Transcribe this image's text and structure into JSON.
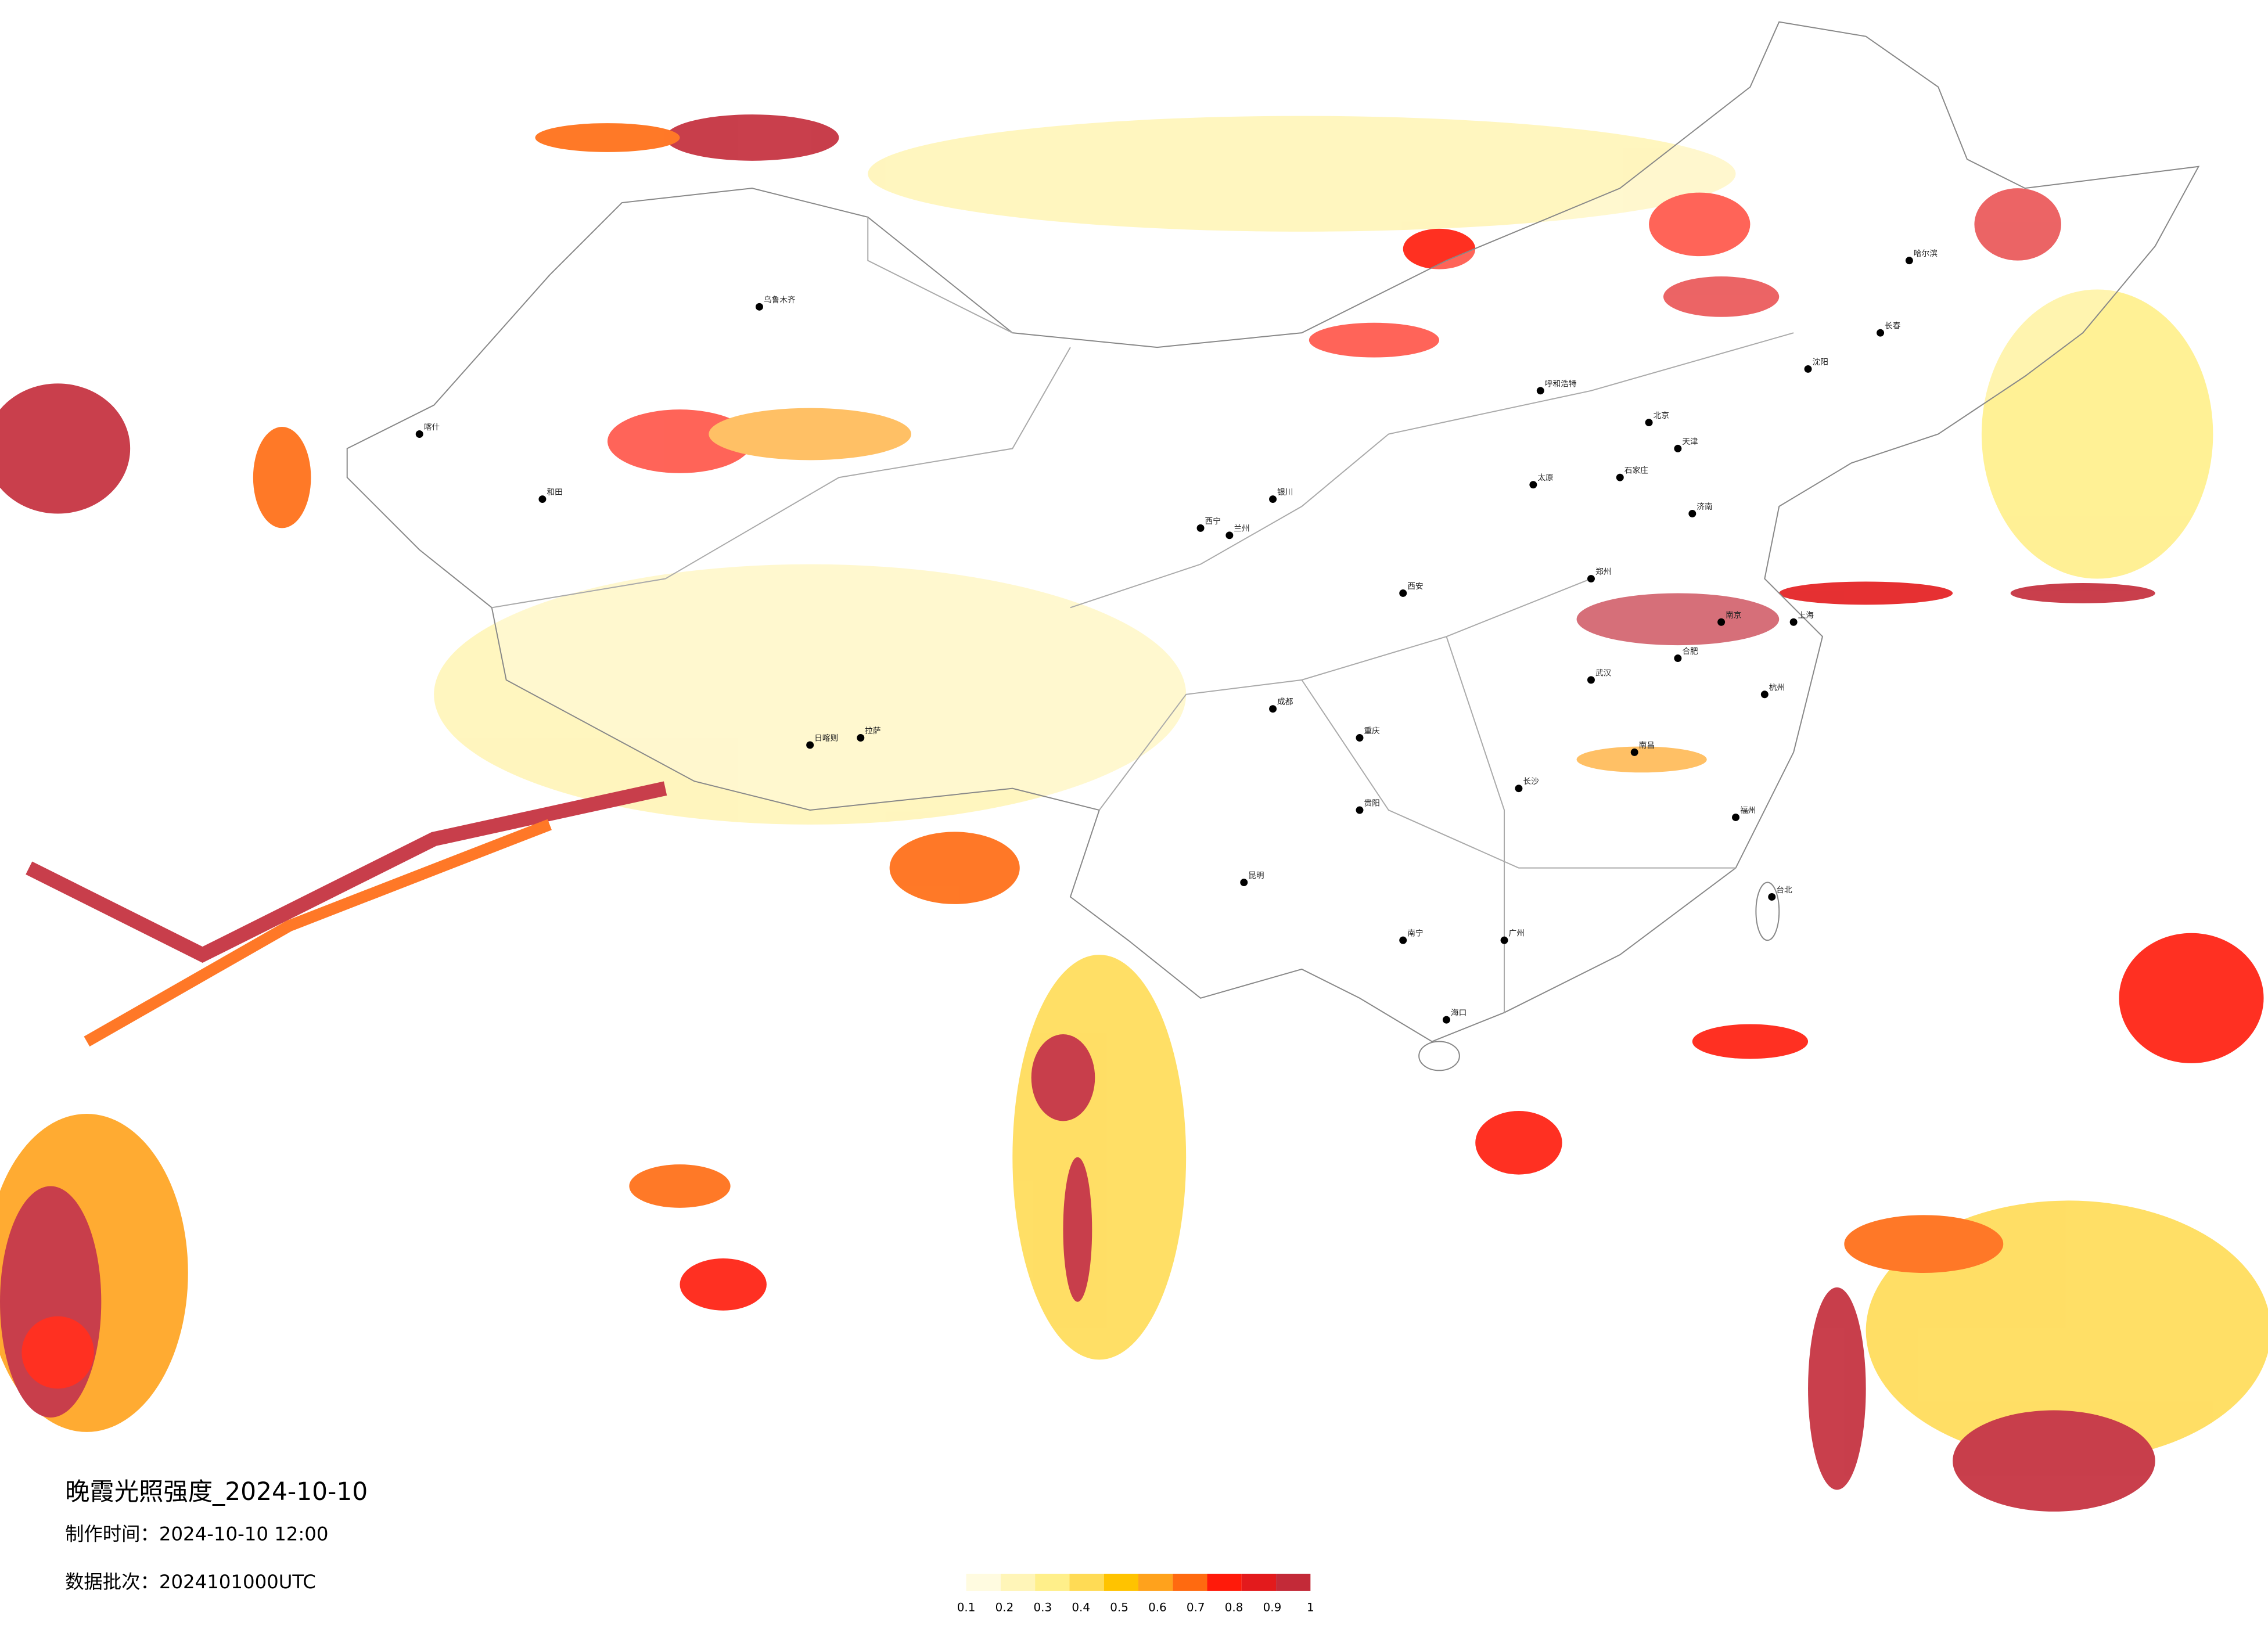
{
  "header": {
    "title": "晚霞光照强度_2024-10-10",
    "made_time": "制作时间：2024-10-10 12:00",
    "batch": "数据批次：2024101000UTC"
  },
  "legend": {
    "colors": [
      "#fffbe0",
      "#fff5b8",
      "#ffef8a",
      "#ffdb55",
      "#ffc300",
      "#ffa21c",
      "#ff6a10",
      "#ff1a0a",
      "#e31a1c",
      "#c32a38"
    ],
    "ticks": [
      0.1,
      0.2,
      0.3,
      0.4,
      0.5,
      0.6,
      0.7,
      0.8,
      0.9,
      1
    ]
  },
  "cities": [
    "北京",
    "天津",
    "石家庄",
    "太原",
    "呼和浩特",
    "沈阳",
    "长春",
    "哈尔滨",
    "济南",
    "郑州",
    "西安",
    "兰州",
    "西宁",
    "银川",
    "乌鲁木齐",
    "拉萨",
    "成都",
    "重庆",
    "贵阳",
    "昆明",
    "南宁",
    "广州",
    "长沙",
    "武汉",
    "南昌",
    "福州",
    "杭州",
    "南京",
    "合肥",
    "上海",
    "海口",
    "台北",
    "喀什",
    "和田",
    "日喀则"
  ]
}
